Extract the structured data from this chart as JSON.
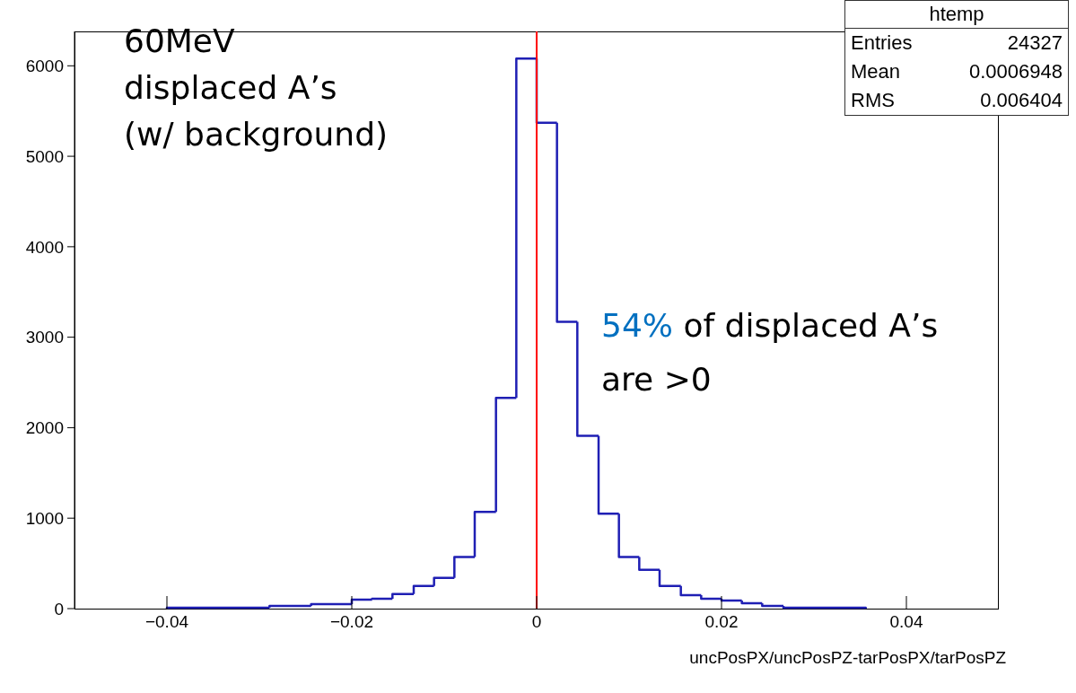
{
  "chart_data": {
    "type": "histogram",
    "xlabel": "uncPosPX/uncPosPZ-tarPosPX/tarPosPZ",
    "color": "#1f1fb4",
    "bins": [
      -0.04,
      -0.0289,
      -0.0244,
      -0.02,
      -0.0178,
      -0.0156,
      -0.0133,
      -0.0111,
      -0.0089,
      -0.0067,
      -0.0044,
      -0.0022,
      0,
      0.0022,
      0.0044,
      0.0067,
      0.0089,
      0.0111,
      0.0133,
      0.0156,
      0.0178,
      0.02,
      0.0222,
      0.0244,
      0.0267,
      0.0356
    ],
    "values": [
      10,
      30,
      50,
      100,
      110,
      160,
      250,
      340,
      570,
      1070,
      2330,
      6080,
      5370,
      3170,
      1910,
      1050,
      570,
      430,
      250,
      150,
      110,
      90,
      60,
      30,
      10
    ],
    "xlim": [
      -0.05,
      0.05
    ],
    "xticks": [
      {
        "value": -0.04,
        "label": "−0.04"
      },
      {
        "value": -0.02,
        "label": "−0.02"
      },
      0,
      0.02,
      0.04
    ],
    "ylim": [
      0,
      6380
    ],
    "yticks": [
      0,
      1000,
      2000,
      3000,
      4000,
      5000,
      6000
    ],
    "grid": false,
    "ref_lines": [
      {
        "axis": "x",
        "value": 0,
        "color": "#ff0000"
      }
    ],
    "annotations": [
      "60MeV\ndisplaced A’s\n(w/ background)",
      "54% of displaced A’s\nare >0",
      "htemp",
      "Entries\t24327",
      "Mean\t0.0006948",
      "RMS\t0.006404"
    ]
  }
}
